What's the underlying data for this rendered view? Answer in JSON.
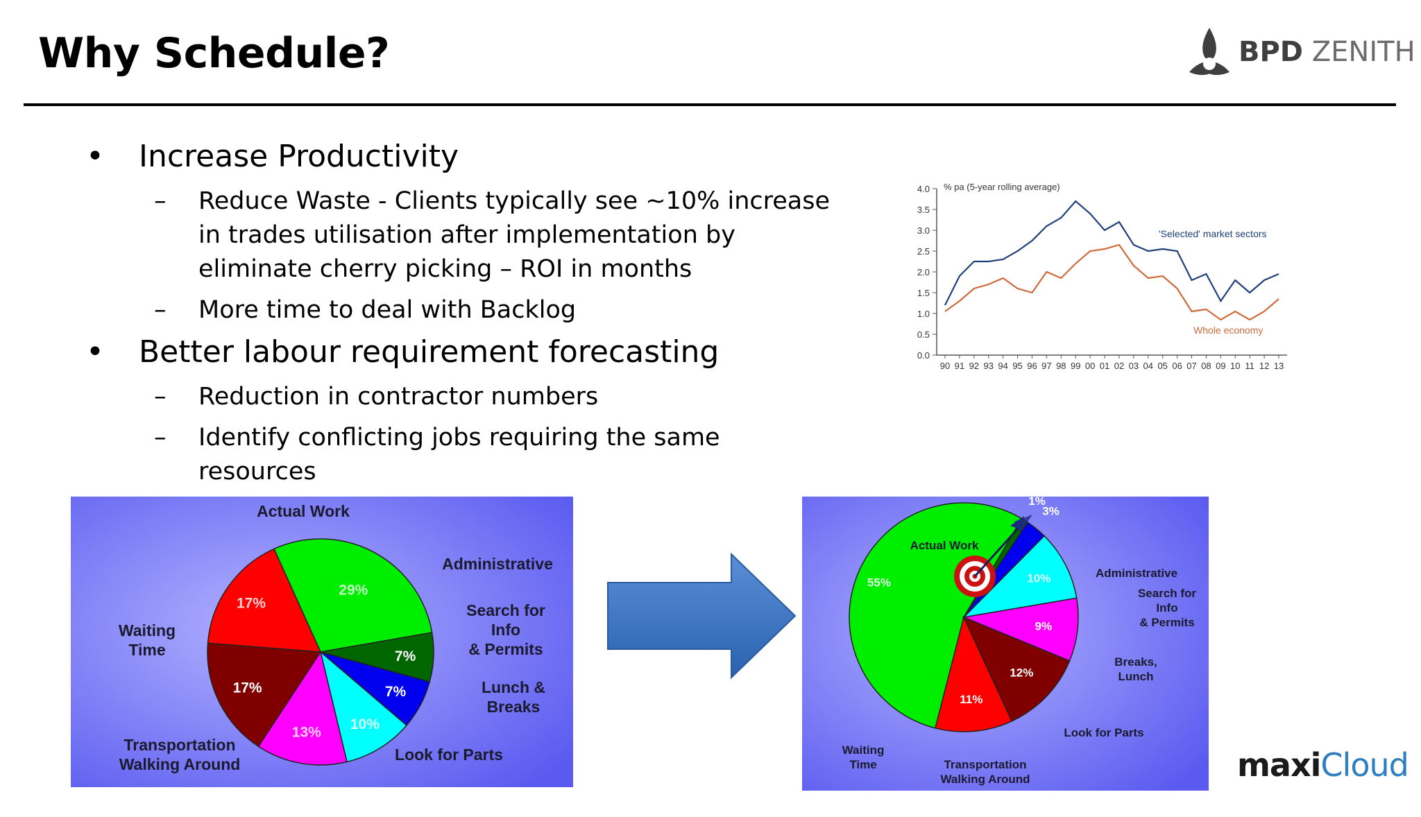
{
  "title": "Why Schedule?",
  "logo": {
    "brand_bold": "BPD",
    "brand_light": "ZENITH"
  },
  "bullets": [
    {
      "text": "Increase Productivity",
      "subs": [
        "Reduce Waste - Clients typically see ~10% increase in trades utilisation after implementation by eliminate cherry picking – ROI in months",
        "More time to deal with Backlog"
      ]
    },
    {
      "text": "Better labour requirement forecasting",
      "subs": [
        "Reduction in contractor numbers",
        "Identify conflicting jobs requiring the same resources"
      ]
    }
  ],
  "bullet_mark": "•",
  "sub_mark": "–",
  "chart_data": [
    {
      "type": "line",
      "title": "% pa (5-year rolling average)",
      "x": [
        "90",
        "91",
        "92",
        "93",
        "94",
        "95",
        "96",
        "97",
        "98",
        "99",
        "00",
        "01",
        "02",
        "03",
        "04",
        "05",
        "06",
        "07",
        "08",
        "09",
        "10",
        "11",
        "12",
        "13"
      ],
      "series": [
        {
          "name": "'Selected' market sectors",
          "color": "#1f3f7a",
          "values": [
            1.2,
            1.9,
            2.25,
            2.25,
            2.3,
            2.5,
            2.75,
            3.1,
            3.3,
            3.7,
            3.4,
            3.0,
            3.2,
            2.65,
            2.5,
            2.55,
            2.5,
            1.8,
            1.95,
            1.3,
            1.8,
            1.5,
            1.8,
            1.95
          ]
        },
        {
          "name": "Whole economy",
          "color": "#d0693a",
          "values": [
            1.05,
            1.3,
            1.6,
            1.7,
            1.85,
            1.6,
            1.5,
            2.0,
            1.85,
            2.2,
            2.5,
            2.55,
            2.65,
            2.15,
            1.85,
            1.9,
            1.6,
            1.05,
            1.1,
            0.85,
            1.05,
            0.85,
            1.05,
            1.35
          ]
        }
      ],
      "ylim": [
        0,
        4.0
      ],
      "yticks": [
        "0.0",
        "0.5",
        "1.0",
        "1.5",
        "2.0",
        "2.5",
        "3.0",
        "3.5",
        "4.0"
      ]
    },
    {
      "type": "pie",
      "slices": [
        {
          "label": "Actual Work",
          "value": 29,
          "value_label": "29%",
          "color": "#00ee00"
        },
        {
          "label": "Administrative",
          "value": 7,
          "value_label": "7%",
          "color": "#006600"
        },
        {
          "label": "Search for Info & Permits",
          "value": 7,
          "value_label": "7%",
          "color": "#0000ee"
        },
        {
          "label": "Lunch & Breaks",
          "value": 10,
          "value_label": "10%",
          "color": "#00ffff"
        },
        {
          "label": "Look for Parts",
          "value": 13,
          "value_label": "13%",
          "color": "#ff00ff"
        },
        {
          "label": "Transportation Walking Around",
          "value": 17,
          "value_label": "17%",
          "color": "#800000"
        },
        {
          "label": "Waiting Time",
          "value": 17,
          "value_label": "17%",
          "color": "#ff0000"
        }
      ]
    },
    {
      "type": "pie",
      "slices": [
        {
          "label": "Actual Work",
          "value": 55,
          "value_label": "55%",
          "color": "#00ee00"
        },
        {
          "label": "Administrative",
          "value": 1,
          "value_label": "1%",
          "color": "#006600"
        },
        {
          "label": "Search for Info & Permits",
          "value": 3,
          "value_label": "3%",
          "color": "#0000ee"
        },
        {
          "label": "Breaks, Lunch",
          "value": 10,
          "value_label": "10%",
          "color": "#00ffff"
        },
        {
          "label": "Look for Parts",
          "value": 9,
          "value_label": "9%",
          "color": "#ff00ff"
        },
        {
          "label": "Transportation Walking Around",
          "value": 12,
          "value_label": "12%",
          "color": "#800000"
        },
        {
          "label": "Waiting Time",
          "value": 11,
          "value_label": "11%",
          "color": "#ff0000"
        }
      ]
    }
  ],
  "pie1_labels": {
    "actual": "Actual Work",
    "admin": "Administrative",
    "search1": "Search for",
    "search2": "Info",
    "search3": "& Permits",
    "lunch1": "Lunch &",
    "lunch2": "Breaks",
    "parts": "Look for Parts",
    "trans1": "Transportation",
    "trans2": "Walking Around",
    "wait1": "Waiting",
    "wait2": "Time"
  },
  "pie2_labels": {
    "actual": "Actual Work",
    "admin": "Administrative",
    "search1": "Search for",
    "search2": "Info",
    "search3": "& Permits",
    "breaks1": "Breaks,",
    "breaks2": "Lunch",
    "parts": "Look for Parts",
    "trans1": "Transportation",
    "trans2": "Walking Around",
    "wait1": "Waiting",
    "wait2": "Time"
  },
  "maxicloud": {
    "bold": "maxi",
    "light": "Cloud"
  }
}
